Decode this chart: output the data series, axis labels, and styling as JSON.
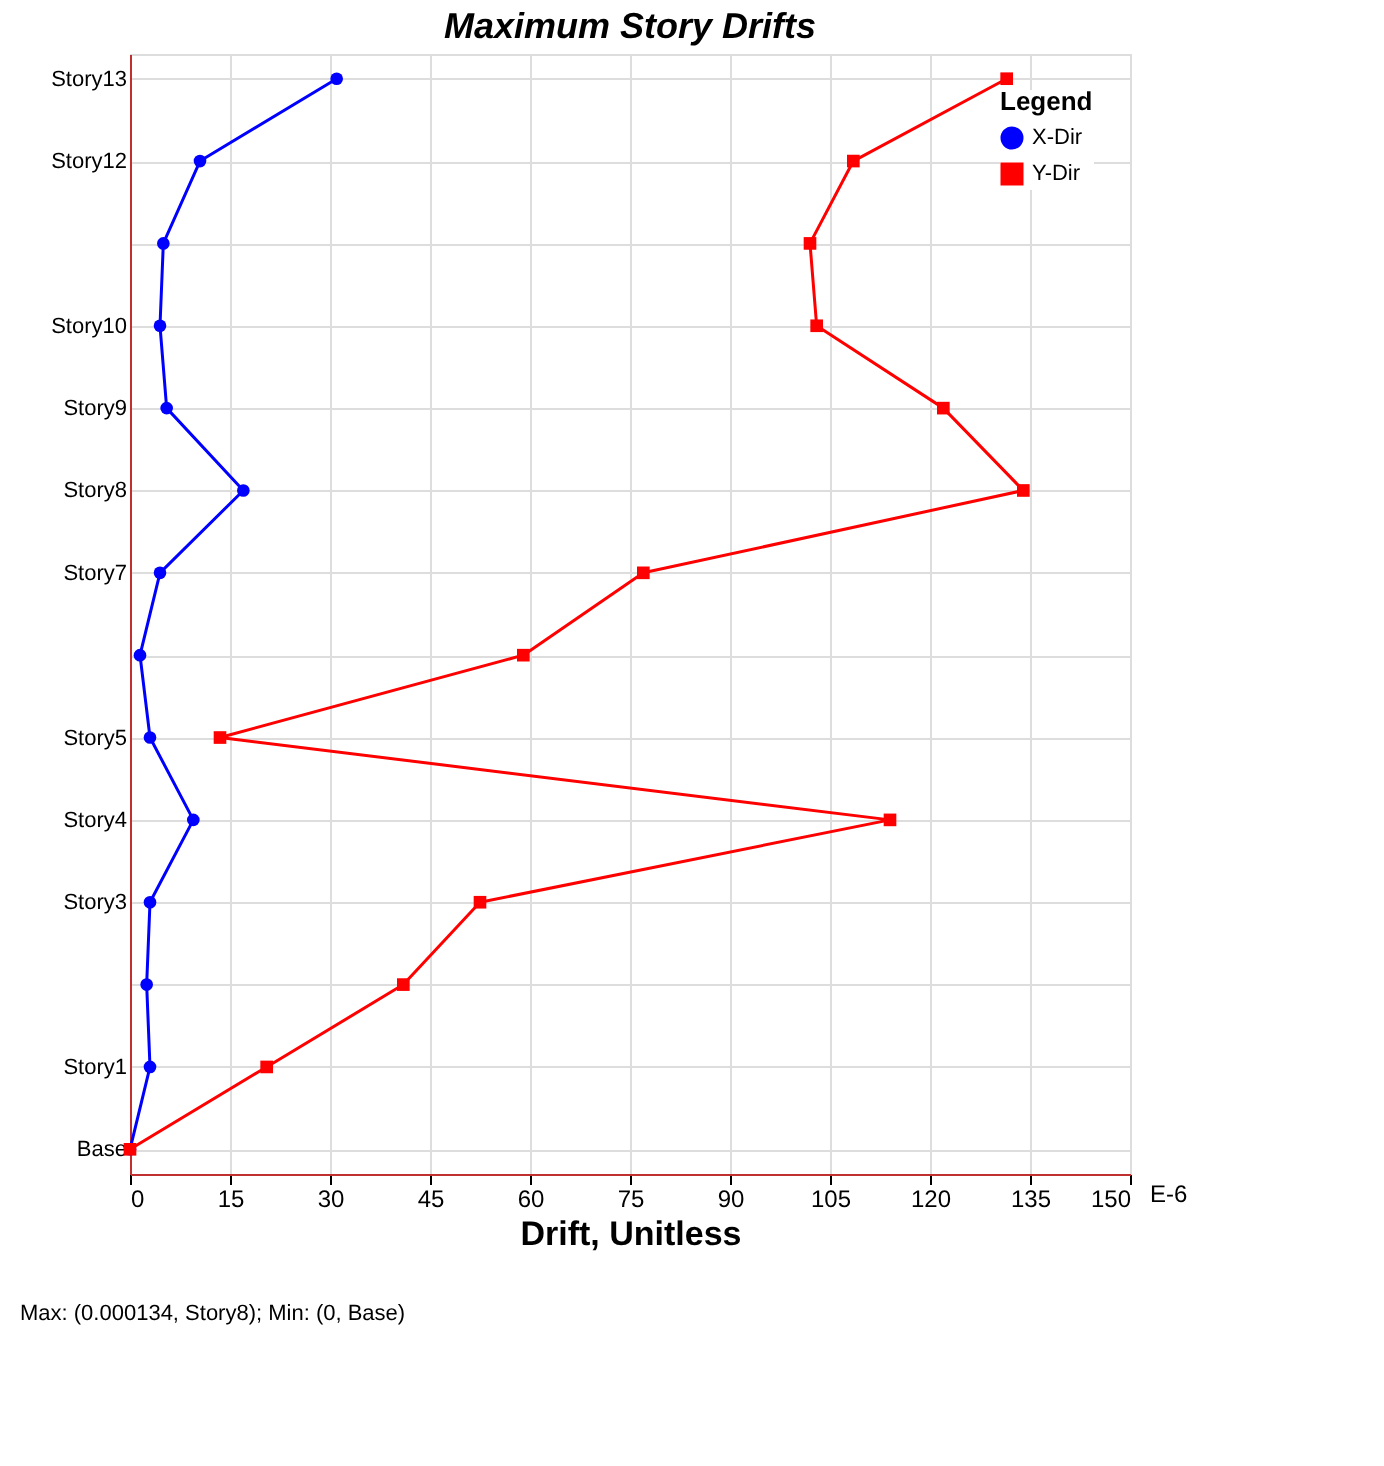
{
  "chart_data": {
    "type": "line",
    "orientation": "horizontal",
    "title": "Maximum Story Drifts",
    "xlabel": "Drift, Unitless",
    "categories": [
      "Story13",
      "Story12",
      null,
      "Story10",
      "Story9",
      "Story8",
      "Story7",
      null,
      "Story5",
      "Story4",
      "Story3",
      null,
      "Story1",
      "Base"
    ],
    "series": [
      {
        "name": "X-Dir",
        "color": "#0000ff",
        "marker": "circle",
        "values": [
          31,
          10.5,
          5,
          4.5,
          5.5,
          17,
          4.5,
          1.5,
          3,
          9.5,
          3,
          2.5,
          3,
          0
        ]
      },
      {
        "name": "Y-Dir",
        "color": "#ff0000",
        "marker": "square",
        "values": [
          131.5,
          108.5,
          102,
          103,
          122,
          134,
          77,
          59,
          13.5,
          114,
          52.5,
          41,
          20.5,
          0
        ]
      }
    ],
    "xlim": [
      0,
      150
    ],
    "xticks": [
      0,
      15,
      30,
      45,
      60,
      75,
      90,
      105,
      120,
      135,
      150
    ],
    "grid": true,
    "legend": "top right",
    "legend_title": "Legend",
    "annotations": [
      "E-6",
      "Max: (0.000134, Story8);  Min: (0, Base)"
    ]
  }
}
